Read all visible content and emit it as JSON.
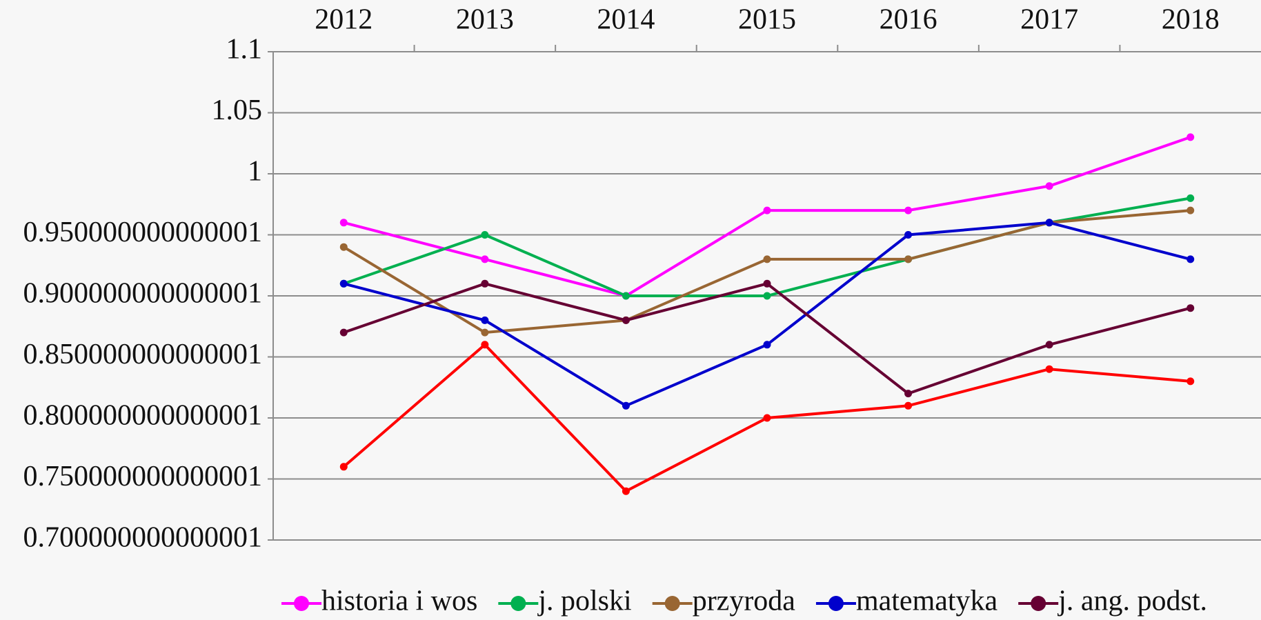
{
  "chart_data": {
    "type": "line",
    "categories": [
      "2012",
      "2013",
      "2014",
      "2015",
      "2016",
      "2017",
      "2018"
    ],
    "ylim": [
      0.7,
      1.1
    ],
    "yticks": [
      {
        "value": 0.7,
        "label": "0.700000000000001"
      },
      {
        "value": 0.75,
        "label": "0.750000000000001"
      },
      {
        "value": 0.8,
        "label": "0.800000000000001"
      },
      {
        "value": 0.85,
        "label": "0.850000000000001"
      },
      {
        "value": 0.9,
        "label": "0.900000000000001"
      },
      {
        "value": 0.95,
        "label": "0.950000000000001"
      },
      1,
      1.05,
      1.1
    ],
    "grid": true,
    "legend": "bottom",
    "series": [
      {
        "name": "historia i wos",
        "color": "#ff00ff",
        "values": [
          0.96,
          0.93,
          0.9,
          0.97,
          0.97,
          0.99,
          1.03
        ]
      },
      {
        "name": "j. polski",
        "color": "#00b050",
        "values": [
          0.91,
          0.95,
          0.9,
          0.9,
          0.93,
          0.96,
          0.98
        ]
      },
      {
        "name": "przyroda",
        "color": "#996633",
        "values": [
          0.94,
          0.87,
          0.88,
          0.93,
          0.93,
          0.96,
          0.97
        ]
      },
      {
        "name": "matematyka",
        "color": "#0000cc",
        "values": [
          0.91,
          0.88,
          0.81,
          0.86,
          0.95,
          0.96,
          0.93
        ]
      },
      {
        "name": "j. ang. podst.",
        "color": "#660033",
        "values": [
          0.87,
          0.91,
          0.88,
          0.91,
          0.82,
          0.86,
          0.89
        ]
      },
      {
        "color": "#ff0000",
        "values": [
          0.76,
          0.86,
          0.74,
          0.8,
          0.81,
          0.84,
          0.83
        ]
      }
    ]
  }
}
